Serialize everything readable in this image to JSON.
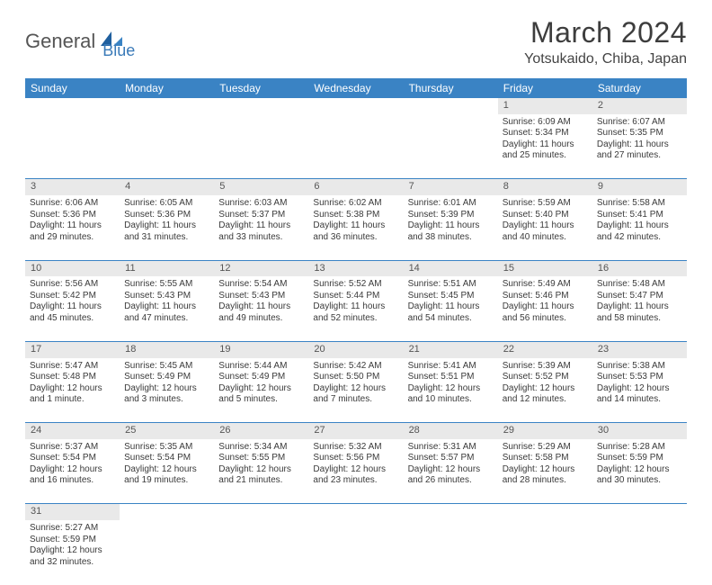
{
  "logo": {
    "part1": "General",
    "part2": "Blue"
  },
  "title": "March 2024",
  "location": "Yotsukaido, Chiba, Japan",
  "colors": {
    "header_bg": "#3a83c4",
    "header_text": "#ffffff",
    "daynum_bg": "#e9e9e9",
    "row_border": "#3a83c4",
    "logo_accent": "#3a7ab8"
  },
  "day_labels": [
    "Sunday",
    "Monday",
    "Tuesday",
    "Wednesday",
    "Thursday",
    "Friday",
    "Saturday"
  ],
  "weeks": [
    [
      null,
      null,
      null,
      null,
      null,
      {
        "n": "1",
        "sr": "Sunrise: 6:09 AM",
        "ss": "Sunset: 5:34 PM",
        "dl": "Daylight: 11 hours and 25 minutes."
      },
      {
        "n": "2",
        "sr": "Sunrise: 6:07 AM",
        "ss": "Sunset: 5:35 PM",
        "dl": "Daylight: 11 hours and 27 minutes."
      }
    ],
    [
      {
        "n": "3",
        "sr": "Sunrise: 6:06 AM",
        "ss": "Sunset: 5:36 PM",
        "dl": "Daylight: 11 hours and 29 minutes."
      },
      {
        "n": "4",
        "sr": "Sunrise: 6:05 AM",
        "ss": "Sunset: 5:36 PM",
        "dl": "Daylight: 11 hours and 31 minutes."
      },
      {
        "n": "5",
        "sr": "Sunrise: 6:03 AM",
        "ss": "Sunset: 5:37 PM",
        "dl": "Daylight: 11 hours and 33 minutes."
      },
      {
        "n": "6",
        "sr": "Sunrise: 6:02 AM",
        "ss": "Sunset: 5:38 PM",
        "dl": "Daylight: 11 hours and 36 minutes."
      },
      {
        "n": "7",
        "sr": "Sunrise: 6:01 AM",
        "ss": "Sunset: 5:39 PM",
        "dl": "Daylight: 11 hours and 38 minutes."
      },
      {
        "n": "8",
        "sr": "Sunrise: 5:59 AM",
        "ss": "Sunset: 5:40 PM",
        "dl": "Daylight: 11 hours and 40 minutes."
      },
      {
        "n": "9",
        "sr": "Sunrise: 5:58 AM",
        "ss": "Sunset: 5:41 PM",
        "dl": "Daylight: 11 hours and 42 minutes."
      }
    ],
    [
      {
        "n": "10",
        "sr": "Sunrise: 5:56 AM",
        "ss": "Sunset: 5:42 PM",
        "dl": "Daylight: 11 hours and 45 minutes."
      },
      {
        "n": "11",
        "sr": "Sunrise: 5:55 AM",
        "ss": "Sunset: 5:43 PM",
        "dl": "Daylight: 11 hours and 47 minutes."
      },
      {
        "n": "12",
        "sr": "Sunrise: 5:54 AM",
        "ss": "Sunset: 5:43 PM",
        "dl": "Daylight: 11 hours and 49 minutes."
      },
      {
        "n": "13",
        "sr": "Sunrise: 5:52 AM",
        "ss": "Sunset: 5:44 PM",
        "dl": "Daylight: 11 hours and 52 minutes."
      },
      {
        "n": "14",
        "sr": "Sunrise: 5:51 AM",
        "ss": "Sunset: 5:45 PM",
        "dl": "Daylight: 11 hours and 54 minutes."
      },
      {
        "n": "15",
        "sr": "Sunrise: 5:49 AM",
        "ss": "Sunset: 5:46 PM",
        "dl": "Daylight: 11 hours and 56 minutes."
      },
      {
        "n": "16",
        "sr": "Sunrise: 5:48 AM",
        "ss": "Sunset: 5:47 PM",
        "dl": "Daylight: 11 hours and 58 minutes."
      }
    ],
    [
      {
        "n": "17",
        "sr": "Sunrise: 5:47 AM",
        "ss": "Sunset: 5:48 PM",
        "dl": "Daylight: 12 hours and 1 minute."
      },
      {
        "n": "18",
        "sr": "Sunrise: 5:45 AM",
        "ss": "Sunset: 5:49 PM",
        "dl": "Daylight: 12 hours and 3 minutes."
      },
      {
        "n": "19",
        "sr": "Sunrise: 5:44 AM",
        "ss": "Sunset: 5:49 PM",
        "dl": "Daylight: 12 hours and 5 minutes."
      },
      {
        "n": "20",
        "sr": "Sunrise: 5:42 AM",
        "ss": "Sunset: 5:50 PM",
        "dl": "Daylight: 12 hours and 7 minutes."
      },
      {
        "n": "21",
        "sr": "Sunrise: 5:41 AM",
        "ss": "Sunset: 5:51 PM",
        "dl": "Daylight: 12 hours and 10 minutes."
      },
      {
        "n": "22",
        "sr": "Sunrise: 5:39 AM",
        "ss": "Sunset: 5:52 PM",
        "dl": "Daylight: 12 hours and 12 minutes."
      },
      {
        "n": "23",
        "sr": "Sunrise: 5:38 AM",
        "ss": "Sunset: 5:53 PM",
        "dl": "Daylight: 12 hours and 14 minutes."
      }
    ],
    [
      {
        "n": "24",
        "sr": "Sunrise: 5:37 AM",
        "ss": "Sunset: 5:54 PM",
        "dl": "Daylight: 12 hours and 16 minutes."
      },
      {
        "n": "25",
        "sr": "Sunrise: 5:35 AM",
        "ss": "Sunset: 5:54 PM",
        "dl": "Daylight: 12 hours and 19 minutes."
      },
      {
        "n": "26",
        "sr": "Sunrise: 5:34 AM",
        "ss": "Sunset: 5:55 PM",
        "dl": "Daylight: 12 hours and 21 minutes."
      },
      {
        "n": "27",
        "sr": "Sunrise: 5:32 AM",
        "ss": "Sunset: 5:56 PM",
        "dl": "Daylight: 12 hours and 23 minutes."
      },
      {
        "n": "28",
        "sr": "Sunrise: 5:31 AM",
        "ss": "Sunset: 5:57 PM",
        "dl": "Daylight: 12 hours and 26 minutes."
      },
      {
        "n": "29",
        "sr": "Sunrise: 5:29 AM",
        "ss": "Sunset: 5:58 PM",
        "dl": "Daylight: 12 hours and 28 minutes."
      },
      {
        "n": "30",
        "sr": "Sunrise: 5:28 AM",
        "ss": "Sunset: 5:59 PM",
        "dl": "Daylight: 12 hours and 30 minutes."
      }
    ],
    [
      {
        "n": "31",
        "sr": "Sunrise: 5:27 AM",
        "ss": "Sunset: 5:59 PM",
        "dl": "Daylight: 12 hours and 32 minutes."
      },
      null,
      null,
      null,
      null,
      null,
      null
    ]
  ]
}
